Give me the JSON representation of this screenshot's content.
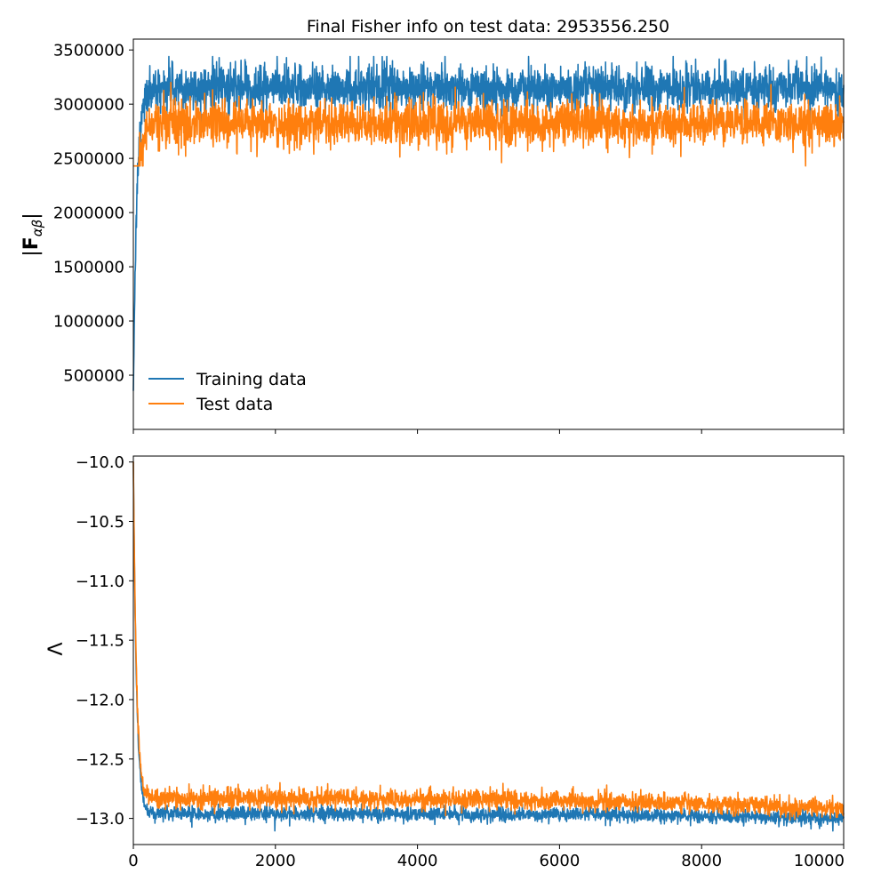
{
  "chart_data": [
    {
      "type": "line",
      "title": "Final Fisher info on test data: 2953556.250",
      "xlabel": "",
      "ylabel": "|F_{αβ}|",
      "ylabel_parts": {
        "bar_left": "|",
        "main": "F",
        "sub": "αβ",
        "bar_right": "|"
      },
      "xlim": [
        0,
        10000
      ],
      "ylim": [
        0,
        3600000
      ],
      "x_ticks": [
        0,
        2000,
        4000,
        6000,
        8000,
        10000
      ],
      "x_tick_labels_visible": false,
      "y_ticks": [
        500000,
        1000000,
        1500000,
        2000000,
        2500000,
        3000000,
        3500000
      ],
      "y_tick_labels": [
        "500000",
        "1000000",
        "1500000",
        "2000000",
        "2500000",
        "3000000",
        "3500000"
      ],
      "grid": false,
      "legend_position": "lower-left",
      "series": [
        {
          "name": "Training data",
          "color": "#1f77b4",
          "start": 300000,
          "plateau": 3150000,
          "noise": 100000,
          "peak_max": 3440000,
          "rise_end_step": 200
        },
        {
          "name": "Test data",
          "color": "#ff7f0e",
          "start": 300000,
          "plateau": 2820000,
          "noise": 100000,
          "peak_max": 3280000,
          "trough_min": 2430000,
          "rise_end_step": 200
        }
      ],
      "legend": [
        "Training data",
        "Test data"
      ]
    },
    {
      "type": "line",
      "title": "",
      "xlabel": "",
      "ylabel": "Λ",
      "xlim": [
        0,
        10000
      ],
      "ylim": [
        -13.22,
        -9.95
      ],
      "x_ticks": [
        0,
        2000,
        4000,
        6000,
        8000,
        10000
      ],
      "x_tick_labels": [
        "0",
        "2000",
        "4000",
        "6000",
        "8000",
        "10000"
      ],
      "y_ticks": [
        -10.0,
        -10.5,
        -11.0,
        -11.5,
        -12.0,
        -12.5,
        -13.0
      ],
      "y_tick_labels": [
        "−10.0",
        "−10.5",
        "−11.0",
        "−11.5",
        "−12.0",
        "−12.5",
        "−13.0"
      ],
      "grid": false,
      "series": [
        {
          "name": "Training data",
          "color": "#1f77b4",
          "start": -10.0,
          "plateau_start": -12.96,
          "plateau_end": -13.0,
          "noise": 0.03,
          "drop_end_step": 200
        },
        {
          "name": "Test data",
          "color": "#ff7f0e",
          "start": -10.0,
          "plateau_start": -12.83,
          "plateau_end": -12.92,
          "noise": 0.04,
          "drop_end_step": 200
        }
      ]
    }
  ]
}
